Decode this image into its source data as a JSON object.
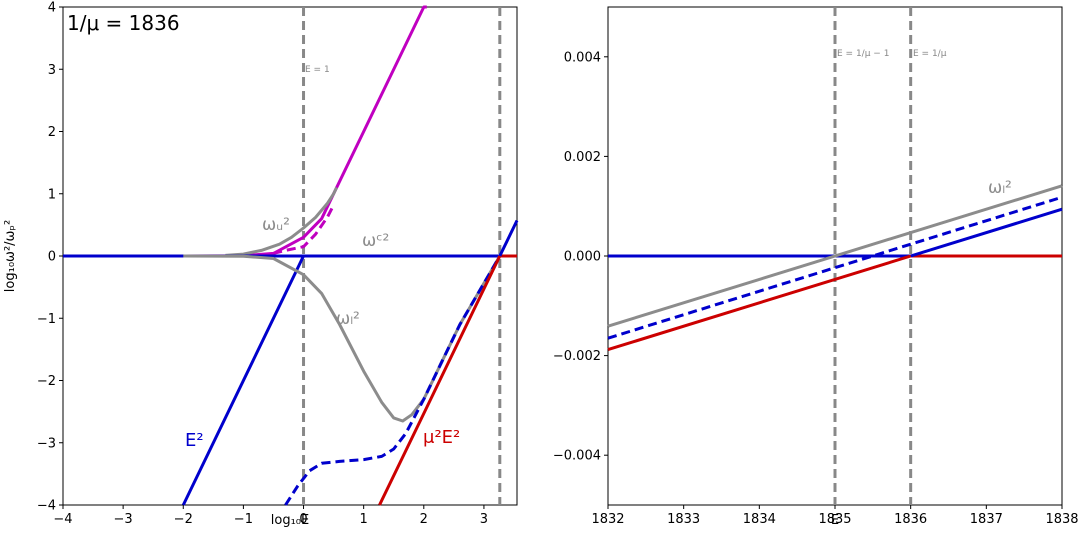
{
  "chart_data": [
    {
      "type": "line",
      "title": "",
      "corner_text": "1/μ = 1836",
      "xlabel": "log₁₀E",
      "ylabel": "log₁₀ω²/ωₚ²",
      "xlim": [
        -4,
        3.55
      ],
      "ylim": [
        -4,
        4
      ],
      "xticks": [
        "−4",
        "−3",
        "−2",
        "−1",
        "0",
        "1",
        "2",
        "3"
      ],
      "yticks": [
        "−4",
        "−3",
        "−2",
        "−1",
        "0",
        "1",
        "2",
        "3",
        "4"
      ],
      "xtick_values": [
        -4,
        -3,
        -2,
        -1,
        0,
        1,
        2,
        3
      ],
      "ytick_values": [
        -4,
        -3,
        -2,
        -1,
        0,
        1,
        2,
        3,
        4
      ],
      "vlines": [
        {
          "x": 0,
          "label": "E = 1",
          "color": "#888888"
        },
        {
          "x": 3.264,
          "label": "",
          "color": "#888888"
        }
      ],
      "series": [
        {
          "name": "",
          "color": "#c000c0",
          "style": "solid",
          "points": [
            [
              -4,
              0
            ],
            [
              -2,
              0.0001
            ],
            [
              -1,
              0.0043
            ],
            [
              -0.5,
              0.0414
            ],
            [
              0,
              0.301
            ],
            [
              0.3,
              0.6
            ],
            [
              0.5,
              1.0
            ],
            [
              1,
              2.0
            ],
            [
              2,
              4.0
            ],
            [
              2.05,
              4.1
            ]
          ]
        },
        {
          "name": "",
          "color": "#c000c0",
          "style": "dashed",
          "points": [
            [
              -1.2,
              0.0
            ],
            [
              -0.6,
              0.02
            ],
            [
              -0.3,
              0.09
            ],
            [
              0,
              0.15
            ],
            [
              0.2,
              0.35
            ],
            [
              0.4,
              0.63
            ],
            [
              0.5,
              0.82
            ]
          ]
        },
        {
          "name": "ωᵤ²",
          "color": "#8c8c8c",
          "style": "solid",
          "points": [
            [
              -1.3,
              0.01
            ],
            [
              -1,
              0.03
            ],
            [
              -0.7,
              0.09
            ],
            [
              -0.4,
              0.19
            ],
            [
              -0.2,
              0.3
            ],
            [
              0,
              0.45
            ],
            [
              0.2,
              0.62
            ],
            [
              0.4,
              0.85
            ],
            [
              0.5,
              1.0
            ],
            [
              0.55,
              1.1
            ]
          ]
        },
        {
          "name": "ωᶜ²",
          "color": "#0000cc",
          "style": "solid",
          "points": [
            [
              -4,
              0
            ],
            [
              3.55,
              0
            ]
          ]
        },
        {
          "name": "",
          "color": "#cc0000",
          "style": "solid",
          "points": [
            [
              3.264,
              0
            ],
            [
              3.55,
              0
            ]
          ]
        },
        {
          "name": "E²",
          "color": "#0000cc",
          "style": "solid",
          "points": [
            [
              -2,
              -4
            ],
            [
              -0.1,
              -0.2
            ],
            [
              0,
              0
            ],
            [
              3.264,
              0
            ],
            [
              3.55,
              0.57
            ]
          ]
        },
        {
          "name": "ωₗ²",
          "color": "#8c8c8c",
          "style": "solid",
          "points": [
            [
              -2,
              -0.0001
            ],
            [
              -1,
              -0.004
            ],
            [
              -0.5,
              -0.04
            ],
            [
              0,
              -0.301
            ],
            [
              0.3,
              -0.6
            ],
            [
              0.6,
              -1.1
            ],
            [
              1,
              -1.85
            ],
            [
              1.3,
              -2.35
            ],
            [
              1.5,
              -2.6
            ],
            [
              1.65,
              -2.65
            ],
            [
              1.8,
              -2.55
            ],
            [
              2,
              -2.3
            ],
            [
              2.3,
              -1.7
            ],
            [
              2.6,
              -1.1
            ],
            [
              3.264,
              0
            ]
          ]
        },
        {
          "name": "",
          "color": "#0000cc",
          "style": "dashed",
          "points": [
            [
              -0.3,
              -4
            ],
            [
              -0.1,
              -3.7
            ],
            [
              0.1,
              -3.45
            ],
            [
              0.3,
              -3.33
            ],
            [
              0.6,
              -3.3
            ],
            [
              1,
              -3.27
            ],
            [
              1.3,
              -3.22
            ],
            [
              1.5,
              -3.1
            ],
            [
              1.7,
              -2.85
            ],
            [
              2,
              -2.3
            ],
            [
              2.3,
              -1.7
            ],
            [
              2.6,
              -1.1
            ],
            [
              3.264,
              0
            ]
          ]
        },
        {
          "name": "μ²E²",
          "color": "#cc0000",
          "style": "solid",
          "points": [
            [
              1.264,
              -4
            ],
            [
              2,
              -2.53
            ],
            [
              3.264,
              0
            ]
          ]
        }
      ],
      "annotations": [
        {
          "text": "ωᵤ²",
          "color": "#8c8c8c"
        },
        {
          "text": "ωᶜ²",
          "color": "#8c8c8c"
        },
        {
          "text": "ωₗ²",
          "color": "#8c8c8c"
        },
        {
          "text": "E²",
          "color": "#0000cc"
        },
        {
          "text": "μ²E²",
          "color": "#cc0000"
        }
      ]
    },
    {
      "type": "line",
      "title": "",
      "xlabel": "E",
      "ylabel": "",
      "xlim": [
        1832,
        1838
      ],
      "ylim": [
        -0.005,
        0.005
      ],
      "xticks": [
        "1832",
        "1833",
        "1834",
        "1835",
        "1836",
        "1837",
        "1838"
      ],
      "yticks": [
        "−0.004",
        "−0.002",
        "0.000",
        "0.002",
        "0.004"
      ],
      "xtick_values": [
        1832,
        1833,
        1834,
        1835,
        1836,
        1837,
        1838
      ],
      "ytick_values": [
        -0.004,
        -0.002,
        0,
        0.002,
        0.004
      ],
      "vlines": [
        {
          "x": 1835,
          "label": "E = 1/μ − 1",
          "color": "#888888"
        },
        {
          "x": 1836,
          "label": "E = 1/μ",
          "color": "#888888"
        }
      ],
      "series": [
        {
          "name": "",
          "color": "#0000cc",
          "style": "solid",
          "points": [
            [
              1832,
              0
            ],
            [
              1838,
              0
            ]
          ]
        },
        {
          "name": "",
          "color": "#cc0000",
          "style": "solid",
          "points": [
            [
              1836,
              0
            ],
            [
              1838,
              0
            ]
          ]
        },
        {
          "name": "ωₗ²",
          "color": "#8c8c8c",
          "style": "solid",
          "points": [
            [
              1832,
              -0.00141
            ],
            [
              1838,
              0.00141
            ]
          ]
        },
        {
          "name": "",
          "color": "#0000cc",
          "style": "dashed",
          "points": [
            [
              1832,
              -0.00165
            ],
            [
              1838,
              0.00118
            ]
          ]
        },
        {
          "name": "",
          "color": "#0000cc",
          "style": "solid",
          "points": [
            [
              1836,
              0
            ],
            [
              1838,
              0.00094
            ]
          ]
        },
        {
          "name": "",
          "color": "#cc0000",
          "style": "solid",
          "points": [
            [
              1832,
              -0.00188
            ],
            [
              1836,
              0
            ]
          ]
        }
      ],
      "annotations": [
        {
          "text": "ωₗ²",
          "color": "#8c8c8c"
        }
      ]
    }
  ]
}
